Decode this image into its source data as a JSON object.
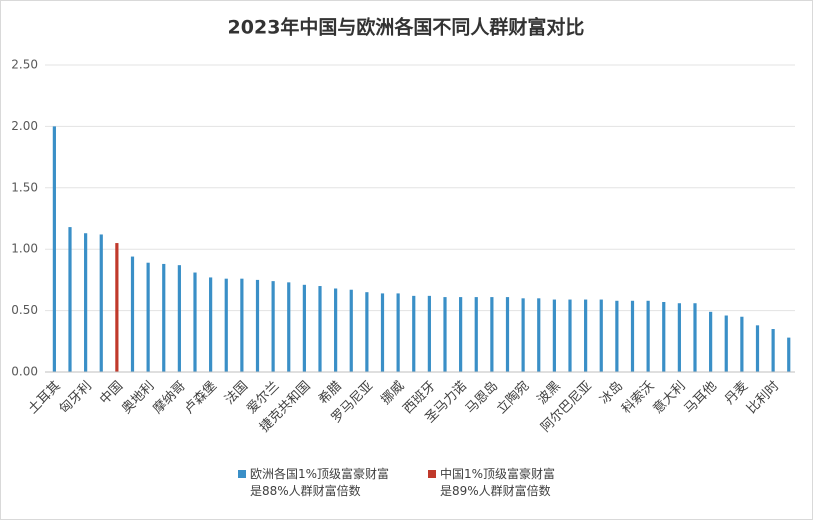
{
  "chart_data": {
    "type": "bar",
    "title": "2023年中国与欧洲各国不同人群财富对比",
    "categories": [
      "土耳其",
      null,
      "匈牙利",
      null,
      "中国",
      null,
      "奥地利",
      null,
      "摩纳哥",
      null,
      "卢森堡",
      null,
      "法国",
      null,
      "爱尔兰",
      null,
      "捷克共和国",
      null,
      "希腊",
      null,
      "罗马尼亚",
      null,
      "挪威",
      null,
      "西班牙",
      null,
      "圣马力诺",
      null,
      "马恩岛",
      null,
      "立陶宛",
      null,
      "波黑",
      null,
      "阿尔巴尼亚",
      null,
      "冰岛",
      null,
      "科索沃",
      null,
      "意大利",
      null,
      "马耳他",
      null,
      "丹麦",
      null,
      "比利时",
      null
    ],
    "series": [
      {
        "name": "欧洲各国1%顶级富豪财富\n是88%人群财富倍数",
        "color": "#3a8fc7",
        "values": [
          2.0,
          1.18,
          1.13,
          1.12,
          null,
          0.94,
          0.89,
          0.88,
          0.87,
          0.81,
          0.77,
          0.76,
          0.76,
          0.75,
          0.74,
          0.73,
          0.71,
          0.7,
          0.68,
          0.67,
          0.65,
          0.64,
          0.64,
          0.62,
          0.62,
          0.61,
          0.61,
          0.61,
          0.61,
          0.61,
          0.6,
          0.6,
          0.59,
          0.59,
          0.59,
          0.59,
          0.58,
          0.58,
          0.58,
          0.57,
          0.56,
          0.56,
          0.49,
          0.46,
          0.45,
          0.38,
          0.35,
          0.28
        ]
      },
      {
        "name": "中国1%顶级富豪财富\n是89%人群财富倍数",
        "color": "#c0392b",
        "values": [
          null,
          null,
          null,
          null,
          1.05,
          null,
          null,
          null,
          null,
          null,
          null,
          null,
          null,
          null,
          null,
          null,
          null,
          null,
          null,
          null,
          null,
          null,
          null,
          null,
          null,
          null,
          null,
          null,
          null,
          null,
          null,
          null,
          null,
          null,
          null,
          null,
          null,
          null,
          null,
          null,
          null,
          null,
          null,
          null,
          null,
          null,
          null,
          null
        ]
      }
    ],
    "ylim": [
      0,
      2.5
    ],
    "yticks": [
      {
        "value": 0,
        "label": "0.00"
      },
      {
        "value": 0.5,
        "label": "0.50"
      },
      {
        "value": 1,
        "label": "1.00"
      },
      {
        "value": 1.5,
        "label": "1.50"
      },
      {
        "value": 2,
        "label": "2.00"
      },
      {
        "value": 2.5,
        "label": "2.50"
      }
    ],
    "grid": true,
    "legend": "bottom"
  }
}
